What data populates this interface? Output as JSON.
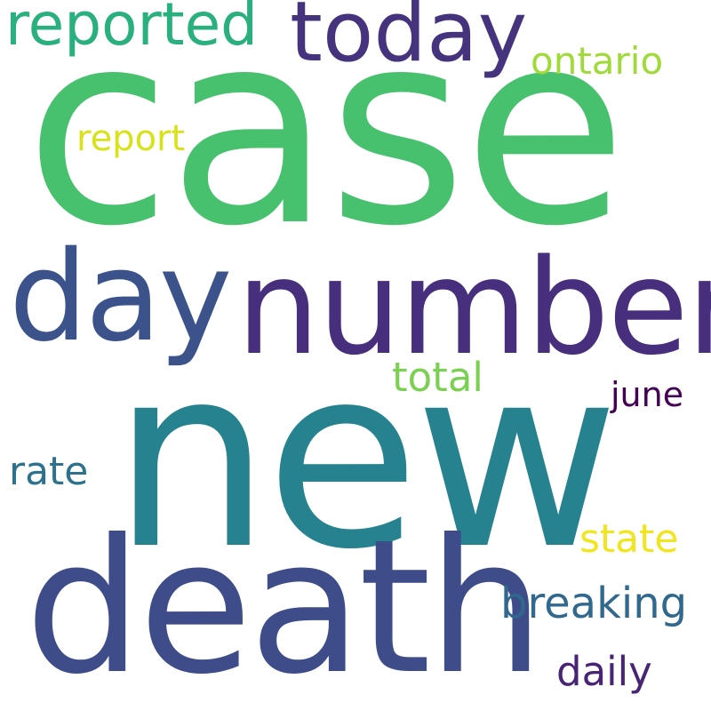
{
  "word_cloud": {
    "background": "#ffffff",
    "words": {
      "case": {
        "text": "case",
        "color": "#48c16e"
      },
      "new": {
        "text": "new",
        "color": "#26828e"
      },
      "death": {
        "text": "death",
        "color": "#3e4c8a"
      },
      "number": {
        "text": "number",
        "color": "#472f7d"
      },
      "day": {
        "text": "day",
        "color": "#3b528b"
      },
      "today": {
        "text": "today",
        "color": "#46337e"
      },
      "reported": {
        "text": "reported",
        "color": "#2ab07f"
      },
      "ontario": {
        "text": "ontario",
        "color": "#a0da39"
      },
      "report": {
        "text": "report",
        "color": "#d8e219"
      },
      "total": {
        "text": "total",
        "color": "#7ad151"
      },
      "june": {
        "text": "june",
        "color": "#440154"
      },
      "rate": {
        "text": "rate",
        "color": "#2c728e"
      },
      "state": {
        "text": "state",
        "color": "#f1e51d"
      },
      "breaking": {
        "text": "breaking",
        "color": "#31688e"
      },
      "daily": {
        "text": "daily",
        "color": "#482475"
      }
    }
  }
}
